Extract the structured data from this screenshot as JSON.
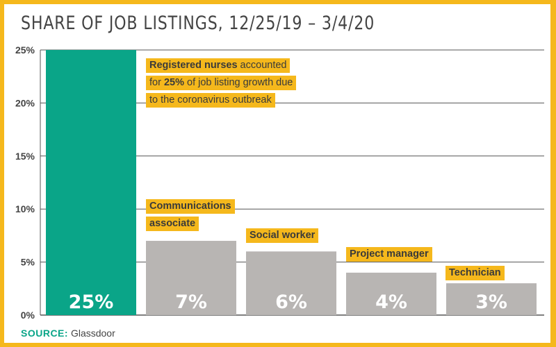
{
  "chart_data": {
    "type": "bar",
    "title": "SHARE OF JOB LISTINGS, 12/25/19 – 3/4/20",
    "categories": [
      "Registered nurses",
      "Communications associate",
      "Social worker",
      "Project manager",
      "Technician"
    ],
    "values": [
      25,
      7,
      6,
      4,
      3
    ],
    "data_labels": [
      "25%",
      "7%",
      "6%",
      "4%",
      "3%"
    ],
    "ylim": [
      0,
      25
    ],
    "yticks": [
      0,
      5,
      10,
      15,
      20,
      25
    ],
    "ytick_labels": [
      "0%",
      "5%",
      "10%",
      "15%",
      "20%",
      "25%"
    ],
    "grid": true,
    "colors": {
      "highlight": "#0aa588",
      "bar": "#b8b5b3",
      "label_bg": "#f5b81c",
      "grid": "#555555"
    }
  },
  "annotation": {
    "line1_bold": "Registered nurses",
    "line1_rest": " accounted",
    "line2_pre": "for ",
    "line2_bold": "25%",
    "line2_post": " of job listing growth due",
    "line3": "to the coronavirus outbreak"
  },
  "bar_labels": {
    "comm_line1": "Communications",
    "comm_line2": "associate",
    "social": "Social worker",
    "project": "Project manager",
    "tech": "Technician"
  },
  "source": {
    "label": "SOURCE:",
    "text": "Glassdoor"
  }
}
